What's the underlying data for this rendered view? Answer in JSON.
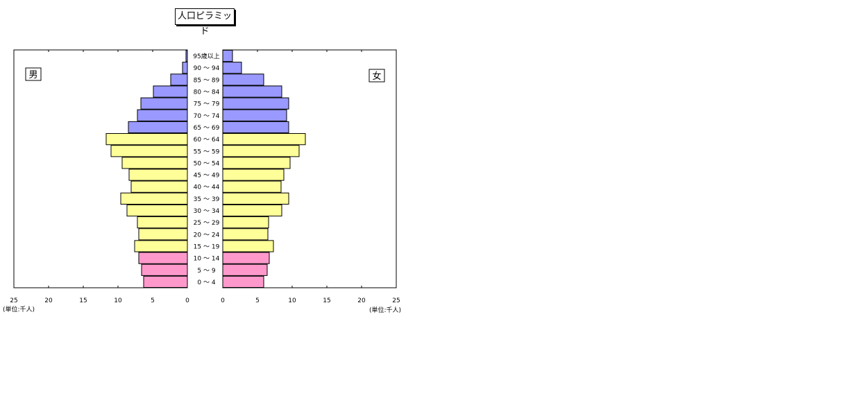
{
  "chart_data": {
    "type": "bar",
    "title": "人口ピラミッド",
    "male_label": "男",
    "female_label": "女",
    "unit_left": "(単位:千人)",
    "unit_right": "(単位:千人)",
    "xlim": [
      0,
      25
    ],
    "ticks_left": [
      "25",
      "20",
      "15",
      "10",
      "5",
      "0"
    ],
    "ticks_right": [
      "0",
      "5",
      "10",
      "15",
      "20",
      "25"
    ],
    "tick_values": [
      0,
      5,
      10,
      15,
      20,
      25
    ],
    "colors": {
      "elderly": "#9999ff",
      "working": "#ffff99",
      "young": "#ff99cc"
    },
    "categories": [
      "95歳以上",
      "90 ～ 94",
      "85 ～ 89",
      "80 ～ 84",
      "75 ～ 79",
      "70 ～ 74",
      "65 ～ 69",
      "60 ～ 64",
      "55 ～ 59",
      "50 ～ 54",
      "45 ～ 49",
      "40 ～ 44",
      "35 ～ 39",
      "30 ～ 34",
      "25 ～ 29",
      "20 ～ 24",
      "15 ～ 19",
      "10 ～ 14",
      "5 ～ 9",
      "0 ～ 4"
    ],
    "groups": [
      "elderly",
      "elderly",
      "elderly",
      "elderly",
      "elderly",
      "elderly",
      "elderly",
      "working",
      "working",
      "working",
      "working",
      "working",
      "working",
      "working",
      "working",
      "working",
      "working",
      "young",
      "young",
      "young"
    ],
    "series": [
      {
        "name": "男",
        "values": [
          0.2,
          0.7,
          2.4,
          4.9,
          6.7,
          7.2,
          8.5,
          11.7,
          11.0,
          9.4,
          8.4,
          8.1,
          9.6,
          8.7,
          7.2,
          7.0,
          7.6,
          7.0,
          6.6,
          6.3
        ]
      },
      {
        "name": "女",
        "values": [
          1.4,
          2.7,
          5.9,
          8.5,
          9.5,
          9.2,
          9.5,
          11.9,
          11.0,
          9.7,
          8.8,
          8.4,
          9.5,
          8.5,
          6.6,
          6.5,
          7.3,
          6.7,
          6.4,
          5.9
        ]
      }
    ]
  }
}
